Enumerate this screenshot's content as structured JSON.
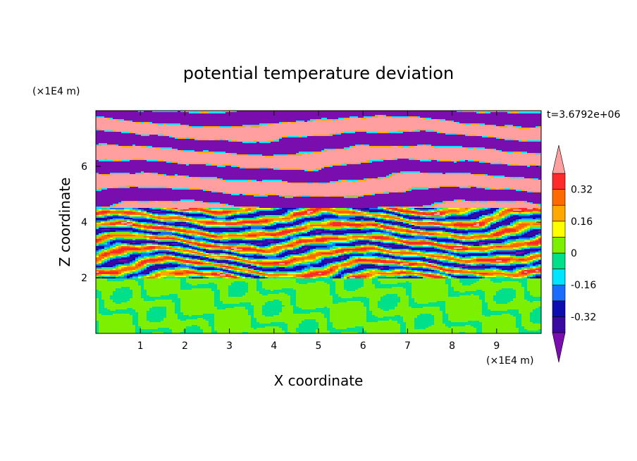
{
  "chart_data": {
    "type": "heatmap",
    "title": "potential temperature deviation",
    "xlabel": "X coordinate",
    "ylabel": "Z coordinate",
    "x_unit": "(×1E4 m)",
    "y_unit": "(×1E4 m)",
    "time_label": "t=3.6792e+06",
    "xlim": [
      0,
      10
    ],
    "ylim": [
      0,
      8
    ],
    "x_ticks": [
      "1",
      "2",
      "3",
      "4",
      "5",
      "6",
      "7",
      "8",
      "9"
    ],
    "y_ticks": [
      "2",
      "4",
      "6"
    ],
    "x_tick_values": [
      1,
      2,
      3,
      4,
      5,
      6,
      7,
      8,
      9
    ],
    "y_tick_values": [
      2,
      4,
      6
    ],
    "colorbar": {
      "levels": [
        -0.48,
        -0.4,
        -0.32,
        -0.24,
        -0.16,
        -0.08,
        0,
        0.08,
        0.16,
        0.24,
        0.32,
        0.4,
        0.48
      ],
      "labels": [
        "0.32",
        "0.16",
        "0",
        "-0.16",
        "-0.32"
      ],
      "label_values": [
        0.32,
        0.16,
        0,
        -0.16,
        -0.32
      ],
      "colors": [
        "#7a0dad",
        "#3a0aa0",
        "#0c0cb0",
        "#1a6cff",
        "#00e5ff",
        "#00e08a",
        "#7cf000",
        "#ffff00",
        "#ffa800",
        "#ff6a00",
        "#ff2a2a",
        "#ff9fa0"
      ],
      "extend": "both"
    },
    "description_bands": [
      {
        "z_range": [
          0,
          2
        ],
        "value_class": "near zero (green)"
      },
      {
        "z_range": [
          2,
          4.5
        ],
        "value_class": "mixed, all levels"
      },
      {
        "z_range": [
          4.5,
          8
        ],
        "value_class": "alternating strong positive / strong negative"
      }
    ]
  }
}
